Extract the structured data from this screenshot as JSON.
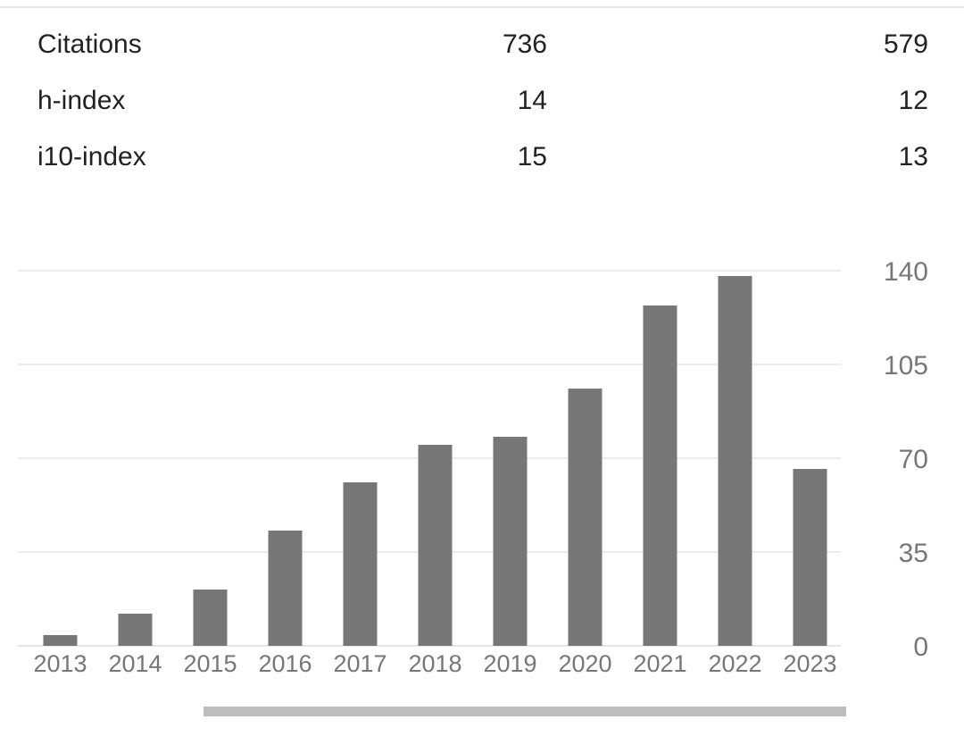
{
  "stats": {
    "rows": [
      {
        "label": "Citations",
        "all": "736",
        "since": "579"
      },
      {
        "label": "h-index",
        "all": "14",
        "since": "12"
      },
      {
        "label": "i10-index",
        "all": "15",
        "since": "13"
      }
    ]
  },
  "chart_data": {
    "type": "bar",
    "title": "",
    "xlabel": "",
    "ylabel": "",
    "categories": [
      "2013",
      "2014",
      "2015",
      "2016",
      "2017",
      "2018",
      "2019",
      "2020",
      "2021",
      "2022",
      "2023"
    ],
    "values": [
      4,
      12,
      21,
      43,
      61,
      75,
      78,
      96,
      127,
      138,
      66
    ],
    "ylim": [
      0,
      140
    ],
    "yticks": [
      0,
      35,
      70,
      105,
      140
    ],
    "grid": true,
    "y_axis_side": "right",
    "bar_color": "#777777"
  },
  "colors": {
    "text": "#222222",
    "axis_text": "#777777",
    "bar": "#777777",
    "scrollbar": "#bdbdbd"
  }
}
